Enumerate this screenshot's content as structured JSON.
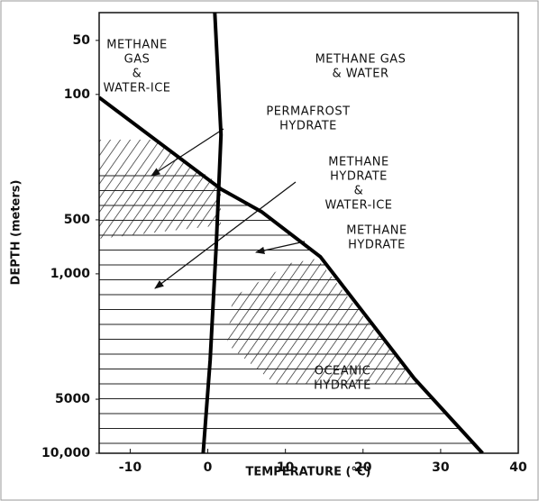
{
  "chart_data": {
    "type": "line",
    "x_label": "TEMPERATURE (°C)",
    "y_label": "DEPTH (meters)",
    "xlim": [
      -14,
      40
    ],
    "xticks": [
      -10,
      0,
      10,
      20,
      30,
      40
    ],
    "ylim": [
      35,
      10000
    ],
    "y_scale": "log",
    "y_inverted": true,
    "yticks": [
      50,
      100,
      500,
      {
        "value": 1000,
        "label": "1,000"
      },
      5000,
      {
        "value": 10000,
        "label": "10,000"
      }
    ],
    "series": [
      {
        "color": "#000000",
        "x": [
          -14,
          1.7,
          6.9,
          14.5,
          26.6,
          35.4
        ],
        "values": [
          104,
          337,
          450,
          803,
          3830,
          10000
        ]
      },
      {
        "color": "#000000",
        "x": [
          0.9,
          1.7,
          1.1,
          0.3,
          -0.6
        ],
        "values": [
          35,
          168,
          675,
          3040,
          10000
        ]
      }
    ],
    "annotations": [
      [
        "METHANE",
        "GAS",
        "&",
        "WATER-ICE"
      ],
      [
        "METHANE GAS",
        "& WATER"
      ],
      [
        "PERMAFROST",
        "HYDRATE"
      ],
      [
        "METHANE",
        "HYDRATE",
        "&",
        "WATER-ICE"
      ],
      [
        "METHANE",
        "HYDRATE"
      ],
      [
        "OCEANIC",
        "HYDRATE"
      ]
    ]
  }
}
